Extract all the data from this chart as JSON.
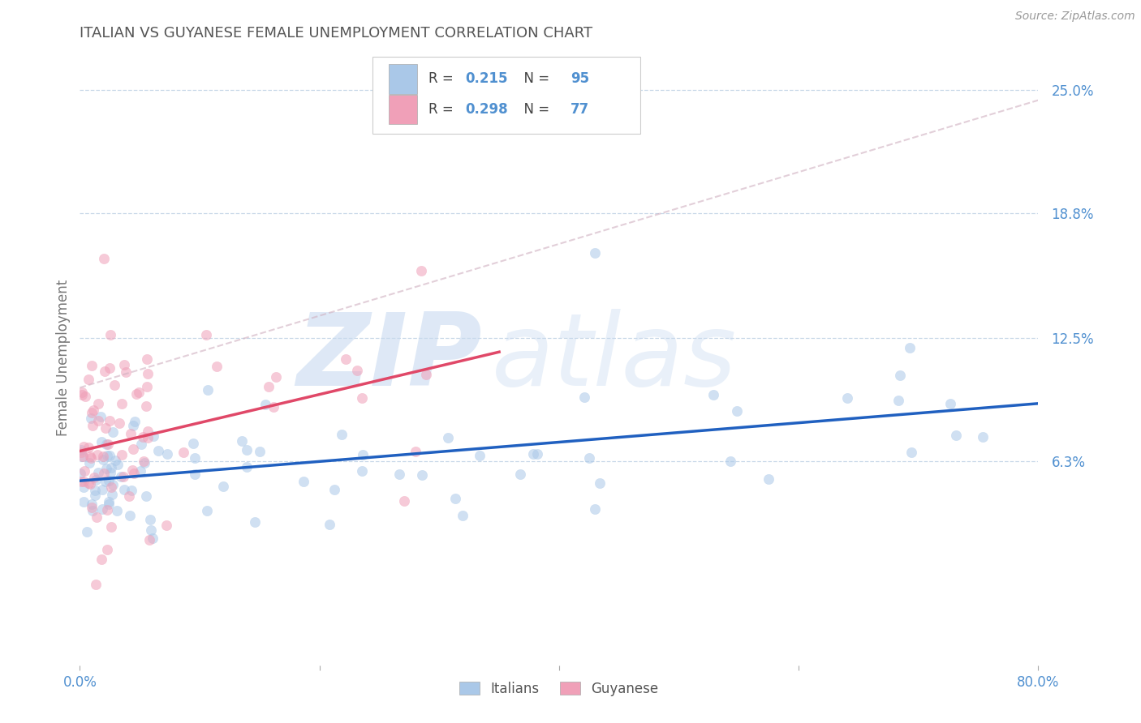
{
  "title": "ITALIAN VS GUYANESE FEMALE UNEMPLOYMENT CORRELATION CHART",
  "source_text": "Source: ZipAtlas.com",
  "ylabel": "Female Unemployment",
  "xlim": [
    0.0,
    0.8
  ],
  "ylim": [
    -0.04,
    0.27
  ],
  "yticks": [
    0.063,
    0.125,
    0.188,
    0.25
  ],
  "ytick_labels": [
    "6.3%",
    "12.5%",
    "18.8%",
    "25.0%"
  ],
  "xticks": [
    0.0,
    0.2,
    0.4,
    0.6,
    0.8
  ],
  "xtick_labels": [
    "0.0%",
    "",
    "",
    "",
    "80.0%"
  ],
  "italians_color": "#aac8e8",
  "guyanese_color": "#f0a0b8",
  "italians_line_color": "#2060c0",
  "guyanese_line_color": "#e04868",
  "scatter_size": 80,
  "scatter_alpha": 0.55,
  "italians_R": 0.215,
  "italians_N": 95,
  "guyanese_R": 0.298,
  "guyanese_N": 77,
  "italians_line_x": [
    0.0,
    0.8
  ],
  "italians_line_y": [
    0.053,
    0.092
  ],
  "guyanese_line_x": [
    0.0,
    0.35
  ],
  "guyanese_line_y": [
    0.068,
    0.118
  ],
  "dashed_line_x": [
    0.0,
    0.8
  ],
  "dashed_line_y": [
    0.1,
    0.245
  ],
  "watermark_zip": "ZIP",
  "watermark_atlas": "atlas",
  "watermark_color": "#c8daf0",
  "background_color": "#ffffff",
  "grid_color": "#c8d8e8",
  "title_color": "#555555",
  "axis_color": "#5090d0",
  "legend_italians_label": "R = 0.215   N = 95",
  "legend_guyanese_label": "R = 0.298   N = 77",
  "bottom_legend_italians": "Italians",
  "bottom_legend_guyanese": "Guyanese"
}
